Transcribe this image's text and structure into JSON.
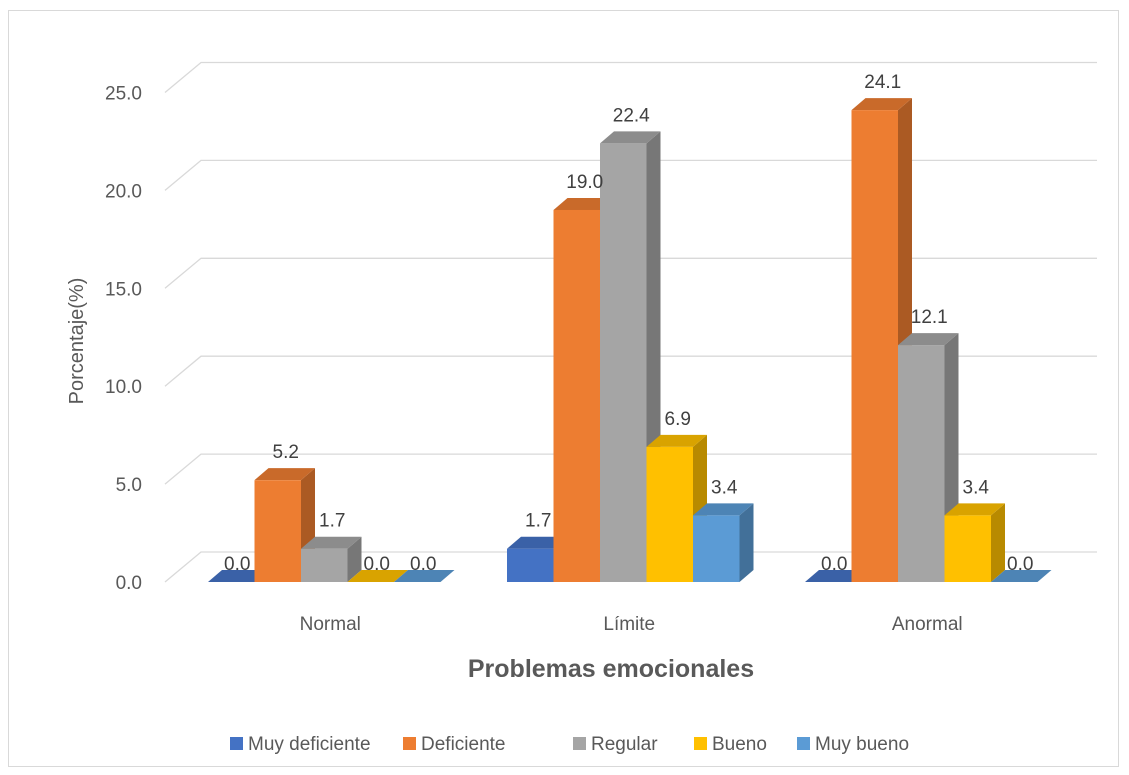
{
  "chart_data": {
    "type": "bar",
    "style": "3d-clustered-column",
    "categories": [
      "Normal",
      "Límite",
      "Anormal"
    ],
    "series": [
      {
        "name": "Muy deficiente",
        "color": "#4472C4",
        "values": [
          0.0,
          1.7,
          0.0
        ]
      },
      {
        "name": "Deficiente",
        "color": "#ED7D31",
        "values": [
          5.2,
          19.0,
          24.1
        ]
      },
      {
        "name": "Regular",
        "color": "#A5A5A5",
        "values": [
          1.7,
          22.4,
          12.1
        ]
      },
      {
        "name": "Bueno",
        "color": "#FFC000",
        "values": [
          0.0,
          6.9,
          3.4
        ]
      },
      {
        "name": "Muy bueno",
        "color": "#5B9BD5",
        "values": [
          0.0,
          3.4,
          0.0
        ]
      }
    ],
    "data_labels": {
      "series_0": [
        "0.0",
        "1.7",
        "0.0"
      ],
      "series_1": [
        "5.2",
        "19.0",
        "24.1"
      ],
      "series_2": [
        "1.7",
        "22.4",
        "12.1"
      ],
      "series_3": [
        "0.0",
        "6.9",
        "3.4"
      ],
      "series_4": [
        "0.0",
        "3.4",
        "0.0"
      ]
    },
    "title": "",
    "xlabel": "Problemas emocionales",
    "ylabel": "Porcentaje(%)",
    "ylim": [
      0,
      25
    ],
    "yticks": [
      "0.0",
      "5.0",
      "10.0",
      "15.0",
      "20.0",
      "25.0"
    ],
    "grid": true,
    "legend_position": "bottom"
  }
}
